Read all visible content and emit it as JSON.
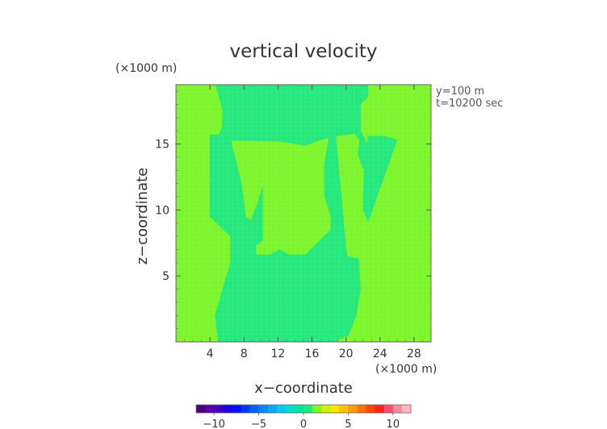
{
  "chart_data": {
    "type": "heatmap",
    "title": "vertical velocity",
    "xlabel": "x−coordinate",
    "ylabel": "z−coordinate",
    "x_unit": "(×1000 m)",
    "z_unit": "(×1000 m)",
    "xlim": [
      0,
      30
    ],
    "zlim": [
      0,
      19.5
    ],
    "x_ticks": [
      4,
      8,
      12,
      16,
      20,
      24,
      28
    ],
    "x_tick_labels": [
      "4",
      "8",
      "12",
      "16",
      "20",
      "24",
      "28"
    ],
    "z_ticks": [
      5,
      10,
      15
    ],
    "z_tick_labels": [
      "5",
      "10",
      "15"
    ],
    "annotations": [
      "y=100 m",
      "t=10200 sec"
    ],
    "grid": true,
    "field_levels": [
      {
        "range": "0 to +1",
        "color": "#7cf52b"
      },
      {
        "range": "-1 to 0",
        "color": "#23e87a"
      }
    ],
    "negative_regions": [
      {
        "name": "central-downdraft-region",
        "x": [
          5.0,
          4.6,
          5.5,
          6.4,
          6.4,
          4.0,
          4.0,
          6.3,
          7.7,
          8.2,
          8.8,
          9.6,
          10.2,
          10.2,
          9.4,
          9.4,
          11.0,
          12.2,
          13.3,
          15.2,
          18.2,
          18.2,
          17.5,
          17.4,
          18.0,
          18.8,
          20.1,
          21.5,
          21.7,
          21.2,
          20.3,
          18.5,
          16.0,
          13.0,
          10.0,
          6.5
        ],
        "z": [
          0.0,
          2.0,
          4.0,
          6.0,
          8.0,
          9.5,
          15.7,
          15.7,
          12.0,
          9.5,
          9.2,
          10.5,
          11.8,
          7.7,
          7.3,
          6.6,
          6.6,
          7.0,
          6.6,
          6.6,
          8.5,
          9.6,
          11.0,
          13.2,
          15.5,
          15.6,
          6.5,
          6.3,
          4.0,
          2.0,
          0.5,
          0.0,
          0.0,
          0.0,
          0.0,
          0.0
        ]
      },
      {
        "name": "upper-downdraft-region",
        "x": [
          4.7,
          5.5,
          5.4,
          4.7,
          12.2,
          15.2,
          17.0,
          18.8,
          21.0,
          21.6,
          21.4,
          22.1,
          22.0,
          22.6,
          26.0,
          24.5,
          22.6,
          22.5,
          21.7,
          21.7,
          22.6,
          22.6,
          4.7
        ],
        "z": [
          19.5,
          17.5,
          16.2,
          15.3,
          15.2,
          14.9,
          15.3,
          15.6,
          15.8,
          15.3,
          14.2,
          13.0,
          10.0,
          9.1,
          15.3,
          15.6,
          15.6,
          15.0,
          16.0,
          18.0,
          18.6,
          19.5,
          19.5
        ]
      }
    ]
  },
  "colorbar": {
    "ticks": [
      "−10",
      "−5",
      "0",
      "5",
      "10"
    ],
    "tick_values": [
      -10,
      -5,
      0,
      5,
      10
    ],
    "range": [
      -12,
      12
    ],
    "colors": [
      "#4a007a",
      "#5c00a8",
      "#4000cc",
      "#1a00e6",
      "#0010ff",
      "#0038ff",
      "#0060ff",
      "#0088ff",
      "#00aaff",
      "#00ccee",
      "#00ddcc",
      "#00e6a0",
      "#23e87a",
      "#7cf52b",
      "#ccf000",
      "#ffe600",
      "#ffc000",
      "#ff9a00",
      "#ff7000",
      "#ff4400",
      "#ff2020",
      "#ff5070",
      "#ff8899",
      "#ffb8c4"
    ]
  }
}
